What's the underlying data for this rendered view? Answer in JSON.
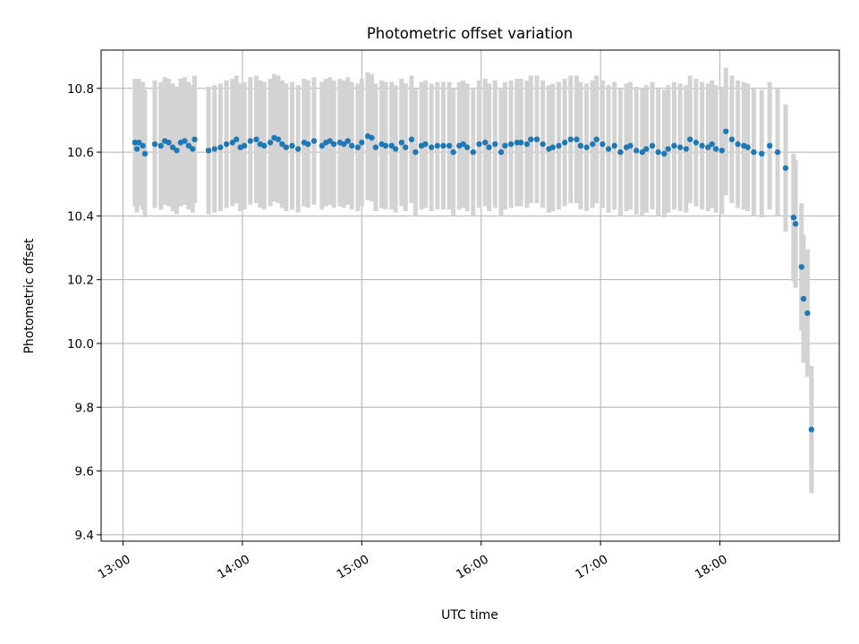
{
  "chart_data": {
    "type": "scatter",
    "title": "Photometric offset variation",
    "xlabel": "UTC time",
    "ylabel": "Photometric offset",
    "x_ticks": [
      "13:00",
      "14:00",
      "15:00",
      "16:00",
      "17:00",
      "18:00"
    ],
    "y_ticks": [
      "9.4",
      "9.6",
      "9.8",
      "10.0",
      "10.2",
      "10.4",
      "10.6",
      "10.8"
    ],
    "xlim": [
      "12:49",
      "19:00"
    ],
    "ylim": [
      9.38,
      10.92
    ],
    "grid": true,
    "colors": {
      "point": "#1f77b4",
      "errorbar": "#d3d3d3",
      "grid": "#b0b0b0"
    },
    "series": [
      {
        "error_bar_half_width": 0.2,
        "points": [
          [
            "13:06",
            10.63
          ],
          [
            "13:07",
            10.61
          ],
          [
            "13:08",
            10.63
          ],
          [
            "13:10",
            10.62
          ],
          [
            "13:11",
            10.595
          ],
          [
            "13:16",
            10.625
          ],
          [
            "13:19",
            10.62
          ],
          [
            "13:21",
            10.635
          ],
          [
            "13:23",
            10.63
          ],
          [
            "13:25",
            10.615
          ],
          [
            "13:27",
            10.605
          ],
          [
            "13:29",
            10.63
          ],
          [
            "13:31",
            10.635
          ],
          [
            "13:33",
            10.62
          ],
          [
            "13:35",
            10.61
          ],
          [
            "13:36",
            10.64
          ],
          [
            "13:43",
            10.605
          ],
          [
            "13:46",
            10.61
          ],
          [
            "13:49",
            10.615
          ],
          [
            "13:52",
            10.625
          ],
          [
            "13:55",
            10.63
          ],
          [
            "13:57",
            10.64
          ],
          [
            "13:59",
            10.615
          ],
          [
            "14:01",
            10.62
          ],
          [
            "14:04",
            10.635
          ],
          [
            "14:07",
            10.64
          ],
          [
            "14:09",
            10.625
          ],
          [
            "14:11",
            10.62
          ],
          [
            "14:14",
            10.63
          ],
          [
            "14:16",
            10.645
          ],
          [
            "14:18",
            10.64
          ],
          [
            "14:20",
            10.625
          ],
          [
            "14:22",
            10.615
          ],
          [
            "14:25",
            10.62
          ],
          [
            "14:28",
            10.61
          ],
          [
            "14:31",
            10.63
          ],
          [
            "14:33",
            10.625
          ],
          [
            "14:36",
            10.635
          ],
          [
            "14:40",
            10.62
          ],
          [
            "14:42",
            10.63
          ],
          [
            "14:44",
            10.635
          ],
          [
            "14:46",
            10.625
          ],
          [
            "14:49",
            10.63
          ],
          [
            "14:51",
            10.625
          ],
          [
            "14:53",
            10.635
          ],
          [
            "14:55",
            10.62
          ],
          [
            "14:58",
            10.615
          ],
          [
            "15:00",
            10.63
          ],
          [
            "15:03",
            10.65
          ],
          [
            "15:05",
            10.645
          ],
          [
            "15:07",
            10.615
          ],
          [
            "15:10",
            10.625
          ],
          [
            "15:12",
            10.62
          ],
          [
            "15:15",
            10.62
          ],
          [
            "15:17",
            10.61
          ],
          [
            "15:20",
            10.63
          ],
          [
            "15:22",
            10.615
          ],
          [
            "15:25",
            10.64
          ],
          [
            "15:27",
            10.6
          ],
          [
            "15:30",
            10.62
          ],
          [
            "15:32",
            10.625
          ],
          [
            "15:35",
            10.615
          ],
          [
            "15:38",
            10.62
          ],
          [
            "15:41",
            10.62
          ],
          [
            "15:44",
            10.62
          ],
          [
            "15:46",
            10.6
          ],
          [
            "15:49",
            10.62
          ],
          [
            "15:51",
            10.625
          ],
          [
            "15:53",
            10.615
          ],
          [
            "15:56",
            10.6
          ],
          [
            "15:59",
            10.625
          ],
          [
            "16:02",
            10.63
          ],
          [
            "16:04",
            10.615
          ],
          [
            "16:07",
            10.625
          ],
          [
            "16:10",
            10.6
          ],
          [
            "16:12",
            10.62
          ],
          [
            "16:15",
            10.625
          ],
          [
            "16:18",
            10.63
          ],
          [
            "16:20",
            10.63
          ],
          [
            "16:23",
            10.625
          ],
          [
            "16:25",
            10.64
          ],
          [
            "16:28",
            10.64
          ],
          [
            "16:31",
            10.625
          ],
          [
            "16:34",
            10.61
          ],
          [
            "16:36",
            10.615
          ],
          [
            "16:39",
            10.62
          ],
          [
            "16:42",
            10.63
          ],
          [
            "16:45",
            10.64
          ],
          [
            "16:48",
            10.64
          ],
          [
            "16:50",
            10.62
          ],
          [
            "16:53",
            10.615
          ],
          [
            "16:56",
            10.625
          ],
          [
            "16:58",
            10.64
          ],
          [
            "17:01",
            10.625
          ],
          [
            "17:04",
            10.61
          ],
          [
            "17:07",
            10.62
          ],
          [
            "17:10",
            10.6
          ],
          [
            "17:13",
            10.615
          ],
          [
            "17:15",
            10.62
          ],
          [
            "17:18",
            10.605
          ],
          [
            "17:21",
            10.6
          ],
          [
            "17:23",
            10.61
          ],
          [
            "17:26",
            10.62
          ],
          [
            "17:29",
            10.6
          ],
          [
            "17:32",
            10.595
          ],
          [
            "17:34",
            10.61
          ],
          [
            "17:37",
            10.62
          ],
          [
            "17:40",
            10.615
          ],
          [
            "17:43",
            10.61
          ],
          [
            "17:45",
            10.64
          ],
          [
            "17:48",
            10.63
          ],
          [
            "17:51",
            10.62
          ],
          [
            "17:54",
            10.615
          ],
          [
            "17:56",
            10.625
          ],
          [
            "17:58",
            10.61
          ],
          [
            "18:01",
            10.605
          ],
          [
            "18:03",
            10.665
          ],
          [
            "18:06",
            10.64
          ],
          [
            "18:09",
            10.625
          ],
          [
            "18:12",
            10.62
          ],
          [
            "18:14",
            10.615
          ],
          [
            "18:17",
            10.6
          ],
          [
            "18:21",
            10.595
          ],
          [
            "18:25",
            10.62
          ],
          [
            "18:29",
            10.6
          ],
          [
            "18:33",
            10.55
          ],
          [
            "18:37",
            10.395
          ],
          [
            "18:38",
            10.375
          ],
          [
            "18:41",
            10.24
          ],
          [
            "18:42",
            10.14
          ],
          [
            "18:44",
            10.095
          ],
          [
            "18:46",
            9.73
          ]
        ]
      }
    ]
  }
}
